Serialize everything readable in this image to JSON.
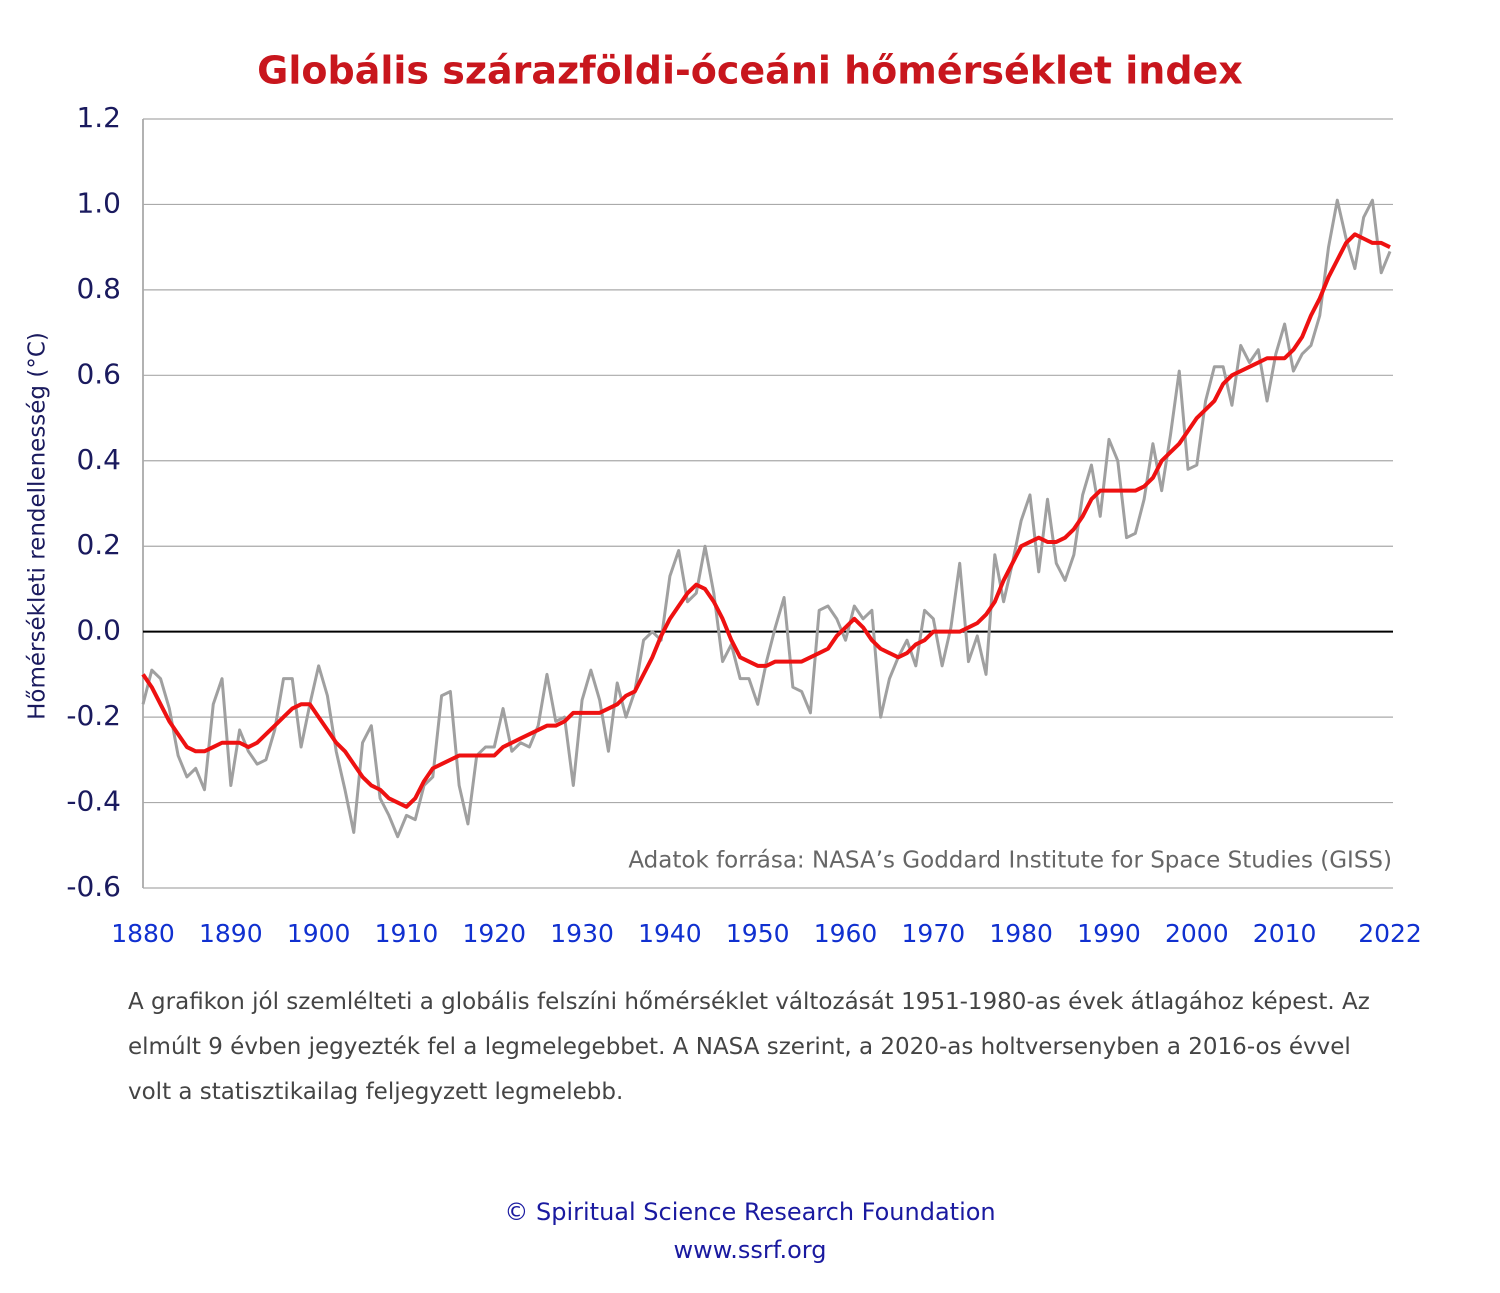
{
  "chart_data": {
    "type": "line",
    "title": "Globális szárazföldi-óceáni hőmérséklet index",
    "y_label": "Hőmérsékleti rendellenesség (°C)",
    "annotation": "Adatok forrása: NASA’s Goddard Institute for Space Studies (GISS)",
    "x": [
      1880,
      1881,
      1882,
      1883,
      1884,
      1885,
      1886,
      1887,
      1888,
      1889,
      1890,
      1891,
      1892,
      1893,
      1894,
      1895,
      1896,
      1897,
      1898,
      1899,
      1900,
      1901,
      1902,
      1903,
      1904,
      1905,
      1906,
      1907,
      1908,
      1909,
      1910,
      1911,
      1912,
      1913,
      1914,
      1915,
      1916,
      1917,
      1918,
      1919,
      1920,
      1921,
      1922,
      1923,
      1924,
      1925,
      1926,
      1927,
      1928,
      1929,
      1930,
      1931,
      1932,
      1933,
      1934,
      1935,
      1936,
      1937,
      1938,
      1939,
      1940,
      1941,
      1942,
      1943,
      1944,
      1945,
      1946,
      1947,
      1948,
      1949,
      1950,
      1951,
      1952,
      1953,
      1954,
      1955,
      1956,
      1957,
      1958,
      1959,
      1960,
      1961,
      1962,
      1963,
      1964,
      1965,
      1966,
      1967,
      1968,
      1969,
      1970,
      1971,
      1972,
      1973,
      1974,
      1975,
      1976,
      1977,
      1978,
      1979,
      1980,
      1981,
      1982,
      1983,
      1984,
      1985,
      1986,
      1987,
      1988,
      1989,
      1990,
      1991,
      1992,
      1993,
      1994,
      1995,
      1996,
      1997,
      1998,
      1999,
      2000,
      2001,
      2002,
      2003,
      2004,
      2005,
      2006,
      2007,
      2008,
      2009,
      2010,
      2011,
      2012,
      2013,
      2014,
      2015,
      2016,
      2017,
      2018,
      2019,
      2020,
      2021,
      2022
    ],
    "series": [
      {
        "color": "#a0a0a0",
        "width": 3,
        "values": [
          -0.17,
          -0.09,
          -0.11,
          -0.18,
          -0.29,
          -0.34,
          -0.32,
          -0.37,
          -0.17,
          -0.11,
          -0.36,
          -0.23,
          -0.28,
          -0.31,
          -0.3,
          -0.23,
          -0.11,
          -0.11,
          -0.27,
          -0.17,
          -0.08,
          -0.15,
          -0.28,
          -0.37,
          -0.47,
          -0.26,
          -0.22,
          -0.39,
          -0.43,
          -0.48,
          -0.43,
          -0.44,
          -0.36,
          -0.34,
          -0.15,
          -0.14,
          -0.36,
          -0.45,
          -0.29,
          -0.27,
          -0.27,
          -0.18,
          -0.28,
          -0.26,
          -0.27,
          -0.22,
          -0.1,
          -0.21,
          -0.2,
          -0.36,
          -0.16,
          -0.09,
          -0.16,
          -0.28,
          -0.12,
          -0.2,
          -0.14,
          -0.02,
          0.0,
          -0.02,
          0.13,
          0.19,
          0.07,
          0.09,
          0.2,
          0.09,
          -0.07,
          -0.03,
          -0.11,
          -0.11,
          -0.17,
          -0.07,
          0.01,
          0.08,
          -0.13,
          -0.14,
          -0.19,
          0.05,
          0.06,
          0.03,
          -0.02,
          0.06,
          0.03,
          0.05,
          -0.2,
          -0.11,
          -0.06,
          -0.02,
          -0.08,
          0.05,
          0.03,
          -0.08,
          0.01,
          0.16,
          -0.07,
          -0.01,
          -0.1,
          0.18,
          0.07,
          0.16,
          0.26,
          0.32,
          0.14,
          0.31,
          0.16,
          0.12,
          0.18,
          0.32,
          0.39,
          0.27,
          0.45,
          0.4,
          0.22,
          0.23,
          0.31,
          0.44,
          0.33,
          0.46,
          0.61,
          0.38,
          0.39,
          0.54,
          0.62,
          0.62,
          0.53,
          0.67,
          0.63,
          0.66,
          0.54,
          0.65,
          0.72,
          0.61,
          0.65,
          0.67,
          0.74,
          0.9,
          1.01,
          0.92,
          0.85,
          0.97,
          1.01,
          0.84,
          0.89
        ]
      },
      {
        "color": "#ee1111",
        "width": 4,
        "values": [
          -0.1,
          -0.13,
          -0.17,
          -0.21,
          -0.24,
          -0.27,
          -0.28,
          -0.28,
          -0.27,
          -0.26,
          -0.26,
          -0.26,
          -0.27,
          -0.26,
          -0.24,
          -0.22,
          -0.2,
          -0.18,
          -0.17,
          -0.17,
          -0.2,
          -0.23,
          -0.26,
          -0.28,
          -0.31,
          -0.34,
          -0.36,
          -0.37,
          -0.39,
          -0.4,
          -0.41,
          -0.39,
          -0.35,
          -0.32,
          -0.31,
          -0.3,
          -0.29,
          -0.29,
          -0.29,
          -0.29,
          -0.29,
          -0.27,
          -0.26,
          -0.25,
          -0.24,
          -0.23,
          -0.22,
          -0.22,
          -0.21,
          -0.19,
          -0.19,
          -0.19,
          -0.19,
          -0.18,
          -0.17,
          -0.15,
          -0.14,
          -0.1,
          -0.06,
          -0.01,
          0.03,
          0.06,
          0.09,
          0.11,
          0.1,
          0.07,
          0.03,
          -0.02,
          -0.06,
          -0.07,
          -0.08,
          -0.08,
          -0.07,
          -0.07,
          -0.07,
          -0.07,
          -0.06,
          -0.05,
          -0.04,
          -0.01,
          0.01,
          0.03,
          0.01,
          -0.02,
          -0.04,
          -0.05,
          -0.06,
          -0.05,
          -0.03,
          -0.02,
          0.0,
          0.0,
          0.0,
          0.0,
          0.01,
          0.02,
          0.04,
          0.07,
          0.12,
          0.16,
          0.2,
          0.21,
          0.22,
          0.21,
          0.21,
          0.22,
          0.24,
          0.27,
          0.31,
          0.33,
          0.33,
          0.33,
          0.33,
          0.33,
          0.34,
          0.36,
          0.4,
          0.42,
          0.44,
          0.47,
          0.5,
          0.52,
          0.54,
          0.58,
          0.6,
          0.61,
          0.62,
          0.63,
          0.64,
          0.64,
          0.64,
          0.66,
          0.69,
          0.74,
          0.78,
          0.83,
          0.87,
          0.91,
          0.93,
          0.92,
          0.91,
          0.91,
          0.9
        ]
      }
    ],
    "xlim": [
      1880,
      2022
    ],
    "xticks": [
      1880,
      1890,
      1900,
      1910,
      1920,
      1930,
      1940,
      1950,
      1960,
      1970,
      1980,
      1990,
      2000,
      2010,
      2022
    ],
    "ylim": [
      -0.6,
      1.2
    ],
    "yticks": [
      -0.6,
      -0.4,
      -0.2,
      {
        "value": 0,
        "label": "0.0"
      },
      0.2,
      0.4,
      0.6,
      0.8,
      {
        "value": 1,
        "label": "1.0"
      },
      1.2
    ],
    "grid": true
  },
  "description": "A grafikon jól szemlélteti a globális felszíni hőmérséklet változását 1951-1980-as évek átlagához képest. Az elmúlt 9 évben jegyezték fel a legmelegebbet. A NASA szerint, a 2020-as holtversenyben a 2016-os évvel volt a statisztikailag feljegyzett legmelebb.",
  "footer": [
    "© Spiritual Science Research Foundation",
    "www.ssrf.org"
  ]
}
